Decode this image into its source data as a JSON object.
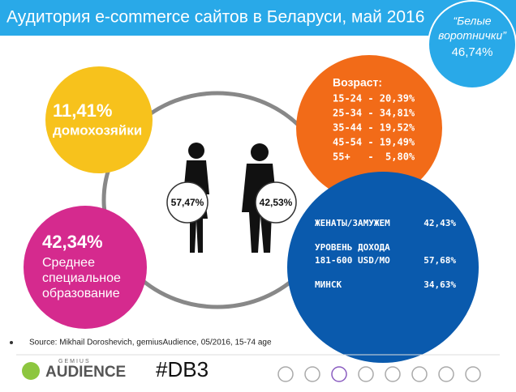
{
  "header": {
    "title": "Аудитория e-commerce сайтов в Беларуси, май 2016"
  },
  "badge": {
    "lines": [
      "“Белые",
      "воротнички”"
    ],
    "value": "46,74%"
  },
  "housewives": {
    "value": "11,41%",
    "label": "домохозяйки"
  },
  "age": {
    "title": "Возраст:",
    "rows": [
      "15-24 - 20,39%",
      "25-34 - 34,81%",
      "35-44 - 19,52%",
      "45-54 - 19,49%",
      "55+   -  5,80%"
    ]
  },
  "gender": {
    "female": "57,47%",
    "male": "42,53%"
  },
  "education": {
    "value": "42,34%",
    "lines": [
      "Среднее",
      "специальное",
      "образование"
    ]
  },
  "stats": [
    {
      "label": "ЖЕНАТЫ/ЗАМУЖЕМ",
      "value": "42,43%"
    },
    {
      "label": "УРОВЕНЬ ДОХОДА",
      "sublabel": "181-600 USD/MO",
      "value": "57,68%"
    },
    {
      "label": "МИНСК",
      "value": "34,63%"
    }
  ],
  "source": "Source: Mikhail Doroshevich, gemiusAudience, 05/2016, 15-74 age",
  "footer": {
    "brand_small": "GEMIUS",
    "brand": "AUDIENCE",
    "hashtag": "#DB3"
  }
}
